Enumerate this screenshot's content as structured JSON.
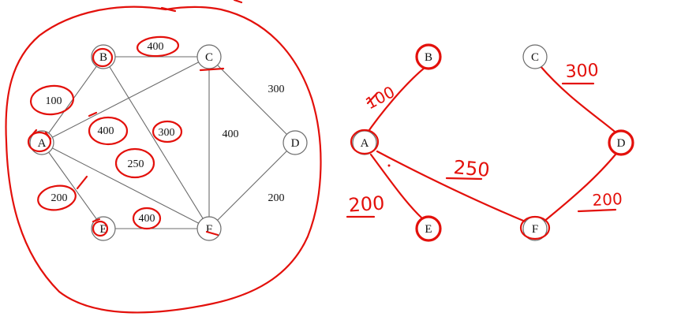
{
  "left_graph": {
    "nodes": [
      "A",
      "B",
      "C",
      "D",
      "E",
      "F"
    ],
    "edges": [
      {
        "from": "A",
        "to": "B",
        "weight": "100"
      },
      {
        "from": "B",
        "to": "C",
        "weight": "400"
      },
      {
        "from": "A",
        "to": "C",
        "weight": "400"
      },
      {
        "from": "B",
        "to": "F",
        "weight": "300"
      },
      {
        "from": "A",
        "to": "F",
        "weight": "250"
      },
      {
        "from": "C",
        "to": "F",
        "weight": "400"
      },
      {
        "from": "C",
        "to": "D",
        "weight": "300"
      },
      {
        "from": "D",
        "to": "F",
        "weight": "200"
      },
      {
        "from": "A",
        "to": "E",
        "weight": "200"
      },
      {
        "from": "E",
        "to": "F",
        "weight": "400"
      }
    ]
  },
  "right_tree": {
    "nodes": [
      "A",
      "B",
      "C",
      "D",
      "E",
      "F"
    ],
    "handwritten_weights": [
      "100",
      "300",
      "250",
      "200",
      "200"
    ]
  },
  "colors": {
    "ink": "#e3100b",
    "edge": "#6b6b6b"
  }
}
